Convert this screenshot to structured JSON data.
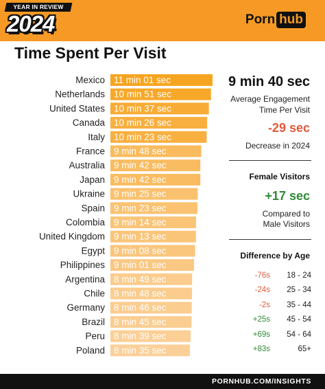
{
  "header": {
    "badge_top": "YEAR IN REVIEW",
    "badge_year": "2024",
    "logo_a": "Porn",
    "logo_b": "hub"
  },
  "title": "Time Spent Per Visit",
  "colors": {
    "bar_max": "#f7a521",
    "bar_min": "#fbd098",
    "accent": "#f79a25",
    "negative": "#e05a3a",
    "positive": "#2f8a35"
  },
  "chart_data": {
    "type": "bar",
    "orientation": "horizontal",
    "categories": [
      "Mexico",
      "Netherlands",
      "United States",
      "Canada",
      "Italy",
      "France",
      "Australia",
      "Japan",
      "Ukraine",
      "Spain",
      "Colombia",
      "United Kingdom",
      "Egypt",
      "Philippines",
      "Argentina",
      "Chile",
      "Germany",
      "Brazil",
      "Peru",
      "Poland"
    ],
    "values_seconds": [
      661,
      651,
      637,
      626,
      623,
      588,
      582,
      582,
      565,
      563,
      554,
      553,
      548,
      541,
      529,
      528,
      526,
      525,
      519,
      515
    ],
    "value_labels": [
      "11 min 01 sec",
      "10 min 51 sec",
      "10 min 37 sec",
      "10 min 26 sec",
      "10 min 23 sec",
      "9 min 48 sec",
      "9 min 42 sec",
      "9 min 42 sec",
      "9 min 25 sec",
      "9 min 23 sec",
      "9 min 14 sec",
      "9 min 13 sec",
      "9 min 08 sec",
      "9 min 01 sec",
      "8 min 49 sec",
      "8 min 48 sec",
      "8 min 46 sec",
      "8 min 45 sec",
      "8 min 39 sec",
      "8 min 35 sec"
    ]
  },
  "summary": {
    "average": "9 min 40 sec",
    "average_desc_1": "Average Engagement",
    "average_desc_2": "Time Per Visit",
    "change": "-29 sec",
    "change_desc": "Decrease in 2024",
    "female_title": "Female Visitors",
    "female_change": "+17 sec",
    "female_desc_1": "Compared to",
    "female_desc_2": "Male Visitors",
    "age_title": "Difference by Age",
    "age_rows": [
      {
        "diff": "-76s",
        "range": "18 - 24",
        "sign": "neg"
      },
      {
        "diff": "-24s",
        "range": "25 - 34",
        "sign": "neg"
      },
      {
        "diff": "-2s",
        "range": "35 - 44",
        "sign": "neg"
      },
      {
        "diff": "+25s",
        "range": "45 - 54",
        "sign": "pos"
      },
      {
        "diff": "+69s",
        "range": "54 - 64",
        "sign": "pos"
      },
      {
        "diff": "+83s",
        "range": "65+",
        "sign": "pos"
      }
    ]
  },
  "footer": "PORNHUB.COM/INSIGHTS"
}
